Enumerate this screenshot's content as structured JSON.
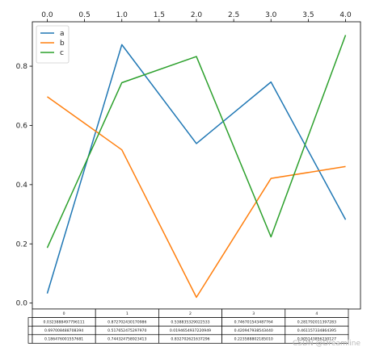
{
  "chart_data": {
    "type": "line",
    "x": [
      0,
      1,
      2,
      3,
      4
    ],
    "x_ticks": [
      "0.0",
      "0.5",
      "1.0",
      "1.5",
      "2.0",
      "2.5",
      "3.0",
      "3.5",
      "4.0"
    ],
    "x_tick_values": [
      0,
      0.5,
      1,
      1.5,
      2,
      2.5,
      3,
      3.5,
      4
    ],
    "xlim": [
      -0.2,
      4.2
    ],
    "x_axis_position": "top",
    "y_ticks": [
      "0.0",
      "0.2",
      "0.4",
      "0.6",
      "0.8"
    ],
    "y_tick_values": [
      0,
      0.2,
      0.4,
      0.6,
      0.8
    ],
    "ylim": [
      -0.02,
      0.95
    ],
    "grid": false,
    "legend": "top-left",
    "series": [
      {
        "name": "a",
        "color": "#1f77b4",
        "values": [
          0.0323888497796111,
          0.872702430170986,
          0.538835329022533,
          0.746701543487764,
          0.281792011397283
        ]
      },
      {
        "name": "b",
        "color": "#ff7f0e",
        "values": [
          0.697008488708394,
          0.51765247529797,
          0.019465493722099,
          0.42094793854344,
          0.461157334864391
        ]
      },
      {
        "name": "c",
        "color": "#2ca02c",
        "values": [
          0.186476001557681,
          0.744324758923413,
          0.832702621637296,
          0.22358880218501,
          0.905143856230127
        ]
      }
    ],
    "table": {
      "col_labels": [
        "0",
        "1",
        "2",
        "3",
        "4"
      ],
      "rows": [
        [
          "0.0323888497796111",
          "0.872702430170986",
          "0.538835329022533",
          "0.746701543487764",
          "0.281792011397283"
        ],
        [
          "0.697008488708394",
          "0.517652475297970",
          "0.0194654937220949",
          "0.420947938543440",
          "0.461157334864395"
        ],
        [
          "0.186476001557681",
          "0.744324758923413",
          "0.832702621637296",
          "0.223588802185010",
          "0.905143856230127"
        ]
      ]
    }
  },
  "watermark": "CSDN @Dreamline"
}
